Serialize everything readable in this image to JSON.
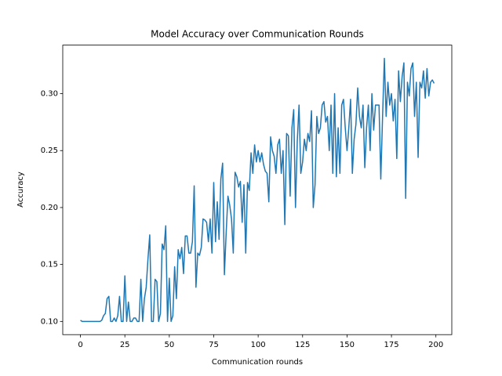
{
  "chart_data": {
    "type": "line",
    "title": "Model Accuracy over Communication Rounds",
    "xlabel": "Communication rounds",
    "ylabel": "Accuracy",
    "x": [
      0,
      1,
      2,
      3,
      4,
      5,
      6,
      7,
      8,
      9,
      10,
      11,
      12,
      13,
      14,
      15,
      16,
      17,
      18,
      19,
      20,
      21,
      22,
      23,
      24,
      25,
      26,
      27,
      28,
      29,
      30,
      31,
      32,
      33,
      34,
      35,
      36,
      37,
      38,
      39,
      40,
      41,
      42,
      43,
      44,
      45,
      46,
      47,
      48,
      49,
      50,
      51,
      52,
      53,
      54,
      55,
      56,
      57,
      58,
      59,
      60,
      61,
      62,
      63,
      64,
      65,
      66,
      67,
      68,
      69,
      70,
      71,
      72,
      73,
      74,
      75,
      76,
      77,
      78,
      79,
      80,
      81,
      82,
      83,
      84,
      85,
      86,
      87,
      88,
      89,
      90,
      91,
      92,
      93,
      94,
      95,
      96,
      97,
      98,
      99,
      100,
      101,
      102,
      103,
      104,
      105,
      106,
      107,
      108,
      109,
      110,
      111,
      112,
      113,
      114,
      115,
      116,
      117,
      118,
      119,
      120,
      121,
      122,
      123,
      124,
      125,
      126,
      127,
      128,
      129,
      130,
      131,
      132,
      133,
      134,
      135,
      136,
      137,
      138,
      139,
      140,
      141,
      142,
      143,
      144,
      145,
      146,
      147,
      148,
      149,
      150,
      151,
      152,
      153,
      154,
      155,
      156,
      157,
      158,
      159,
      160,
      161,
      162,
      163,
      164,
      165,
      166,
      167,
      168,
      169,
      170,
      171,
      172,
      173,
      174,
      175,
      176,
      177,
      178,
      179,
      180,
      181,
      182,
      183,
      184,
      185,
      186,
      187,
      188,
      189,
      190,
      191,
      192,
      193,
      194,
      195,
      196,
      197,
      198,
      199
    ],
    "series": [
      {
        "name": "Accuracy",
        "color": "#1f77b4",
        "values": [
          0.101,
          0.1,
          0.1,
          0.1,
          0.1,
          0.1,
          0.1,
          0.1,
          0.1,
          0.1,
          0.1,
          0.1,
          0.101,
          0.105,
          0.107,
          0.12,
          0.122,
          0.1,
          0.1,
          0.103,
          0.1,
          0.105,
          0.122,
          0.1,
          0.1,
          0.14,
          0.1,
          0.117,
          0.1,
          0.1,
          0.103,
          0.103,
          0.1,
          0.1,
          0.137,
          0.1,
          0.12,
          0.13,
          0.155,
          0.176,
          0.1,
          0.1,
          0.137,
          0.135,
          0.1,
          0.107,
          0.168,
          0.163,
          0.184,
          0.1,
          0.138,
          0.1,
          0.105,
          0.148,
          0.12,
          0.163,
          0.155,
          0.165,
          0.142,
          0.175,
          0.175,
          0.16,
          0.16,
          0.17,
          0.219,
          0.13,
          0.16,
          0.158,
          0.165,
          0.19,
          0.189,
          0.187,
          0.17,
          0.19,
          0.16,
          0.222,
          0.17,
          0.205,
          0.172,
          0.225,
          0.239,
          0.141,
          0.178,
          0.21,
          0.202,
          0.19,
          0.16,
          0.231,
          0.227,
          0.218,
          0.223,
          0.187,
          0.22,
          0.16,
          0.222,
          0.215,
          0.248,
          0.23,
          0.255,
          0.24,
          0.25,
          0.24,
          0.248,
          0.238,
          0.232,
          0.23,
          0.205,
          0.262,
          0.25,
          0.245,
          0.23,
          0.255,
          0.26,
          0.23,
          0.25,
          0.185,
          0.265,
          0.263,
          0.21,
          0.27,
          0.286,
          0.2,
          0.258,
          0.29,
          0.23,
          0.24,
          0.26,
          0.25,
          0.265,
          0.258,
          0.285,
          0.2,
          0.22,
          0.28,
          0.265,
          0.27,
          0.29,
          0.293,
          0.275,
          0.28,
          0.25,
          0.29,
          0.23,
          0.3,
          0.227,
          0.27,
          0.23,
          0.29,
          0.295,
          0.27,
          0.25,
          0.27,
          0.295,
          0.23,
          0.26,
          0.273,
          0.305,
          0.28,
          0.27,
          0.29,
          0.235,
          0.27,
          0.29,
          0.25,
          0.3,
          0.268,
          0.29,
          0.29,
          0.29,
          0.225,
          0.28,
          0.331,
          0.28,
          0.31,
          0.29,
          0.3,
          0.276,
          0.295,
          0.243,
          0.32,
          0.293,
          0.315,
          0.327,
          0.208,
          0.31,
          0.298,
          0.322,
          0.327,
          0.28,
          0.31,
          0.244,
          0.31,
          0.305,
          0.32,
          0.296,
          0.322,
          0.298,
          0.31,
          0.312,
          0.309
        ]
      }
    ],
    "xlim": [
      -9.95,
      208.95
    ],
    "xticks": [
      0,
      25,
      50,
      75,
      100,
      125,
      150,
      175,
      200
    ],
    "ylim": [
      0.0884,
      0.3426
    ],
    "yticks": [
      {
        "value": 0.1,
        "label": "0.10"
      },
      {
        "value": 0.15,
        "label": "0.15"
      },
      {
        "value": 0.2,
        "label": "0.20"
      },
      {
        "value": 0.25,
        "label": "0.25"
      },
      {
        "value": 0.3,
        "label": "0.30"
      }
    ]
  }
}
